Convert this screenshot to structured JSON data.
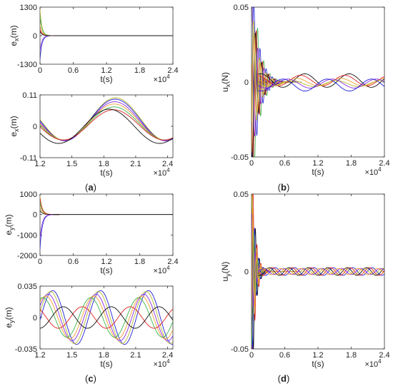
{
  "captions": [
    "a",
    "b",
    "c",
    "d"
  ],
  "colors": {
    "blue": "#1f1fd6",
    "red": "#e02020",
    "orange": "#f0a030",
    "olive": "#b8b830",
    "purple": "#8a2be2",
    "green": "#3cb44b",
    "black": "#111111"
  },
  "chart_data": [
    {
      "id": "ex-full",
      "type": "line",
      "xlabel": "t(s)",
      "ylabel": "e",
      "ylabel_sub": "x",
      "ylabel_unit": "(m)",
      "xlim": [
        0,
        2.4
      ],
      "ylim": [
        -1300,
        1300
      ],
      "xticks": [
        "0",
        "0.6",
        "1.2",
        "1.8",
        "2.4"
      ],
      "xtick_values": [
        0,
        0.6,
        1.2,
        1.8,
        2.4
      ],
      "yticks": [
        "-1300",
        "0",
        "1300"
      ],
      "ytick_values": [
        -1300,
        0,
        1300
      ],
      "x_multiplier": "×10",
      "x_exponent": "4",
      "transient": {
        "kind": "decay",
        "tau": 0.035,
        "amplitudes": [
          -1100,
          -700,
          1200,
          900,
          500,
          300,
          200
        ],
        "colors": [
          "blue",
          "purple",
          "olive",
          "green",
          "orange",
          "red",
          "black"
        ]
      }
    },
    {
      "id": "ex-zoom",
      "type": "line",
      "xlabel": "t(s)",
      "ylabel": "e",
      "ylabel_sub": "x",
      "ylabel_unit": "(m)",
      "xlim": [
        1.2,
        2.45
      ],
      "ylim": [
        -0.11,
        0.11
      ],
      "xticks": [
        "1.2",
        "1.5",
        "1.8",
        "2.1",
        "2.4"
      ],
      "xtick_values": [
        1.2,
        1.5,
        1.8,
        2.1,
        2.4
      ],
      "yticks": [
        "-0.11",
        "0",
        "0.11"
      ],
      "ytick_values": [
        -0.11,
        0,
        0.11
      ],
      "x_multiplier": "×10",
      "x_exponent": "4",
      "series": [
        {
          "color": "olive",
          "offset": 0.025,
          "amp": 0.075,
          "period": 0.95,
          "phase": 1.5
        },
        {
          "color": "blue",
          "offset": 0.022,
          "amp": 0.073,
          "period": 0.95,
          "phase": 1.52
        },
        {
          "color": "purple",
          "offset": 0.018,
          "amp": 0.068,
          "period": 0.95,
          "phase": 1.55
        },
        {
          "color": "orange",
          "offset": 0.015,
          "amp": 0.063,
          "period": 0.95,
          "phase": 1.58
        },
        {
          "color": "green",
          "offset": 0.01,
          "amp": 0.058,
          "period": 0.95,
          "phase": 1.6
        },
        {
          "color": "red",
          "offset": 0.005,
          "amp": 0.053,
          "period": 0.95,
          "phase": 1.62
        },
        {
          "color": "black",
          "offset": 0.0,
          "amp": 0.06,
          "period": 0.95,
          "phase": 1.9
        }
      ]
    },
    {
      "id": "ux",
      "type": "line",
      "xlabel": "t(s)",
      "ylabel": "u",
      "ylabel_sub": "x",
      "ylabel_unit": "(N)",
      "xlim": [
        0,
        2.4
      ],
      "ylim": [
        -0.05,
        0.05
      ],
      "xticks": [
        "0",
        "0.6",
        "1.2",
        "1.8",
        "2.4"
      ],
      "xtick_values": [
        0,
        0.6,
        1.2,
        1.8,
        2.4
      ],
      "yticks": [
        "-0.05",
        "0",
        "0.05"
      ],
      "ytick_values": [
        -0.05,
        0,
        0.05
      ],
      "x_multiplier": "×10",
      "x_exponent": "4",
      "transient": {
        "kind": "ring",
        "tau": 0.12,
        "freq": 9,
        "amplitudes": [
          0.09,
          -0.08,
          0.07,
          0.06,
          -0.06,
          0.05,
          0.055
        ],
        "colors": [
          "green",
          "blue",
          "red",
          "black",
          "purple",
          "orange",
          "olive"
        ]
      },
      "series": [
        {
          "color": "black",
          "offset": 0.001,
          "amp": 0.0045,
          "period": 0.8,
          "phase": 0.3
        },
        {
          "color": "red",
          "offset": 0.001,
          "amp": 0.0035,
          "period": 0.8,
          "phase": 0.9
        },
        {
          "color": "orange",
          "offset": 0.0,
          "amp": 0.0025,
          "period": 0.8,
          "phase": 1.5
        },
        {
          "color": "olive",
          "offset": -0.001,
          "amp": 0.002,
          "period": 0.8,
          "phase": 2.1
        },
        {
          "color": "purple",
          "offset": -0.001,
          "amp": 0.003,
          "period": 0.8,
          "phase": 2.7
        },
        {
          "color": "blue",
          "offset": -0.002,
          "amp": 0.004,
          "period": 0.8,
          "phase": 3.4
        }
      ]
    },
    {
      "id": "ey-full",
      "type": "line",
      "xlabel": "t(s)",
      "ylabel": "e",
      "ylabel_sub": "y",
      "ylabel_unit": "(m)",
      "xlim": [
        0,
        2.4
      ],
      "ylim": [
        -2000,
        1000
      ],
      "xticks": [
        "0",
        "0.6",
        "1.2",
        "1.8",
        "2.4"
      ],
      "xtick_values": [
        0,
        0.6,
        1.2,
        1.8,
        2.4
      ],
      "yticks": [
        "-2000",
        "-1000",
        "0",
        "1000"
      ],
      "ytick_values": [
        -2000,
        -1000,
        0,
        1000
      ],
      "x_multiplier": "×10",
      "x_exponent": "4",
      "transient": {
        "kind": "decay",
        "tau": 0.04,
        "amplitudes": [
          -1700,
          -1200,
          900,
          600,
          400,
          800,
          200
        ],
        "colors": [
          "blue",
          "purple",
          "olive",
          "green",
          "orange",
          "red",
          "black"
        ]
      }
    },
    {
      "id": "ey-zoom",
      "type": "line",
      "xlabel": "t(s)",
      "ylabel": "e",
      "ylabel_sub": "y",
      "ylabel_unit": "(m)",
      "xlim": [
        1.2,
        2.45
      ],
      "ylim": [
        -0.035,
        0.035
      ],
      "xticks": [
        "1.2",
        "1.5",
        "1.8",
        "2.1",
        "2.4"
      ],
      "xtick_values": [
        1.2,
        1.5,
        1.8,
        2.1,
        2.4
      ],
      "yticks": [
        "-0.035",
        "0",
        "0.035"
      ],
      "ytick_values": [
        -0.035,
        0,
        0.035
      ],
      "x_multiplier": "×10",
      "x_exponent": "4",
      "series": [
        {
          "color": "blue",
          "offset": 0.0,
          "amp": 0.03,
          "period": 0.45,
          "phase": 2.0
        },
        {
          "color": "olive",
          "offset": 0.0,
          "amp": 0.029,
          "period": 0.45,
          "phase": 2.3
        },
        {
          "color": "purple",
          "offset": 0.0,
          "amp": 0.026,
          "period": 0.45,
          "phase": 2.6
        },
        {
          "color": "orange",
          "offset": 0.0,
          "amp": 0.024,
          "period": 0.45,
          "phase": 2.9
        },
        {
          "color": "green",
          "offset": 0.0,
          "amp": 0.022,
          "period": 0.45,
          "phase": 3.3
        },
        {
          "color": "red",
          "offset": 0.0,
          "amp": 0.012,
          "period": 0.45,
          "phase": 4.4
        },
        {
          "color": "black",
          "offset": 0.0,
          "amp": 0.012,
          "period": 0.45,
          "phase": 0.6
        }
      ]
    },
    {
      "id": "uy",
      "type": "line",
      "xlabel": "t(s)",
      "ylabel": "u",
      "ylabel_sub": "y",
      "ylabel_unit": "(N)",
      "xlim": [
        0,
        2.4
      ],
      "ylim": [
        -0.05,
        0.05
      ],
      "xticks": [
        "0",
        "0.6",
        "1.2",
        "1.8",
        "2.4"
      ],
      "xtick_values": [
        0,
        0.6,
        1.2,
        1.8,
        2.4
      ],
      "yticks": [
        "-0.05",
        "0",
        "0.05"
      ],
      "ytick_values": [
        -0.05,
        0,
        0.05
      ],
      "x_multiplier": "×10",
      "x_exponent": "4",
      "transient": {
        "kind": "ring",
        "tau": 0.06,
        "freq": 14,
        "amplitudes": [
          0.09,
          -0.09,
          0.07,
          -0.06,
          0.05,
          -0.04,
          0.06
        ],
        "colors": [
          "black",
          "red",
          "blue",
          "olive",
          "green",
          "purple",
          "orange"
        ]
      },
      "series": [
        {
          "color": "blue",
          "offset": 0.0,
          "amp": 0.0025,
          "period": 0.35,
          "phase": 0.2
        },
        {
          "color": "red",
          "offset": 0.0,
          "amp": 0.0025,
          "period": 0.35,
          "phase": 1.1
        },
        {
          "color": "black",
          "offset": 0.0,
          "amp": 0.0025,
          "period": 0.35,
          "phase": 2.0
        },
        {
          "color": "olive",
          "offset": 0.0,
          "amp": 0.002,
          "period": 0.35,
          "phase": 2.9
        },
        {
          "color": "purple",
          "offset": 0.0,
          "amp": 0.002,
          "period": 0.35,
          "phase": 3.8
        },
        {
          "color": "orange",
          "offset": 0.0,
          "amp": 0.002,
          "period": 0.35,
          "phase": 4.7
        }
      ]
    }
  ]
}
